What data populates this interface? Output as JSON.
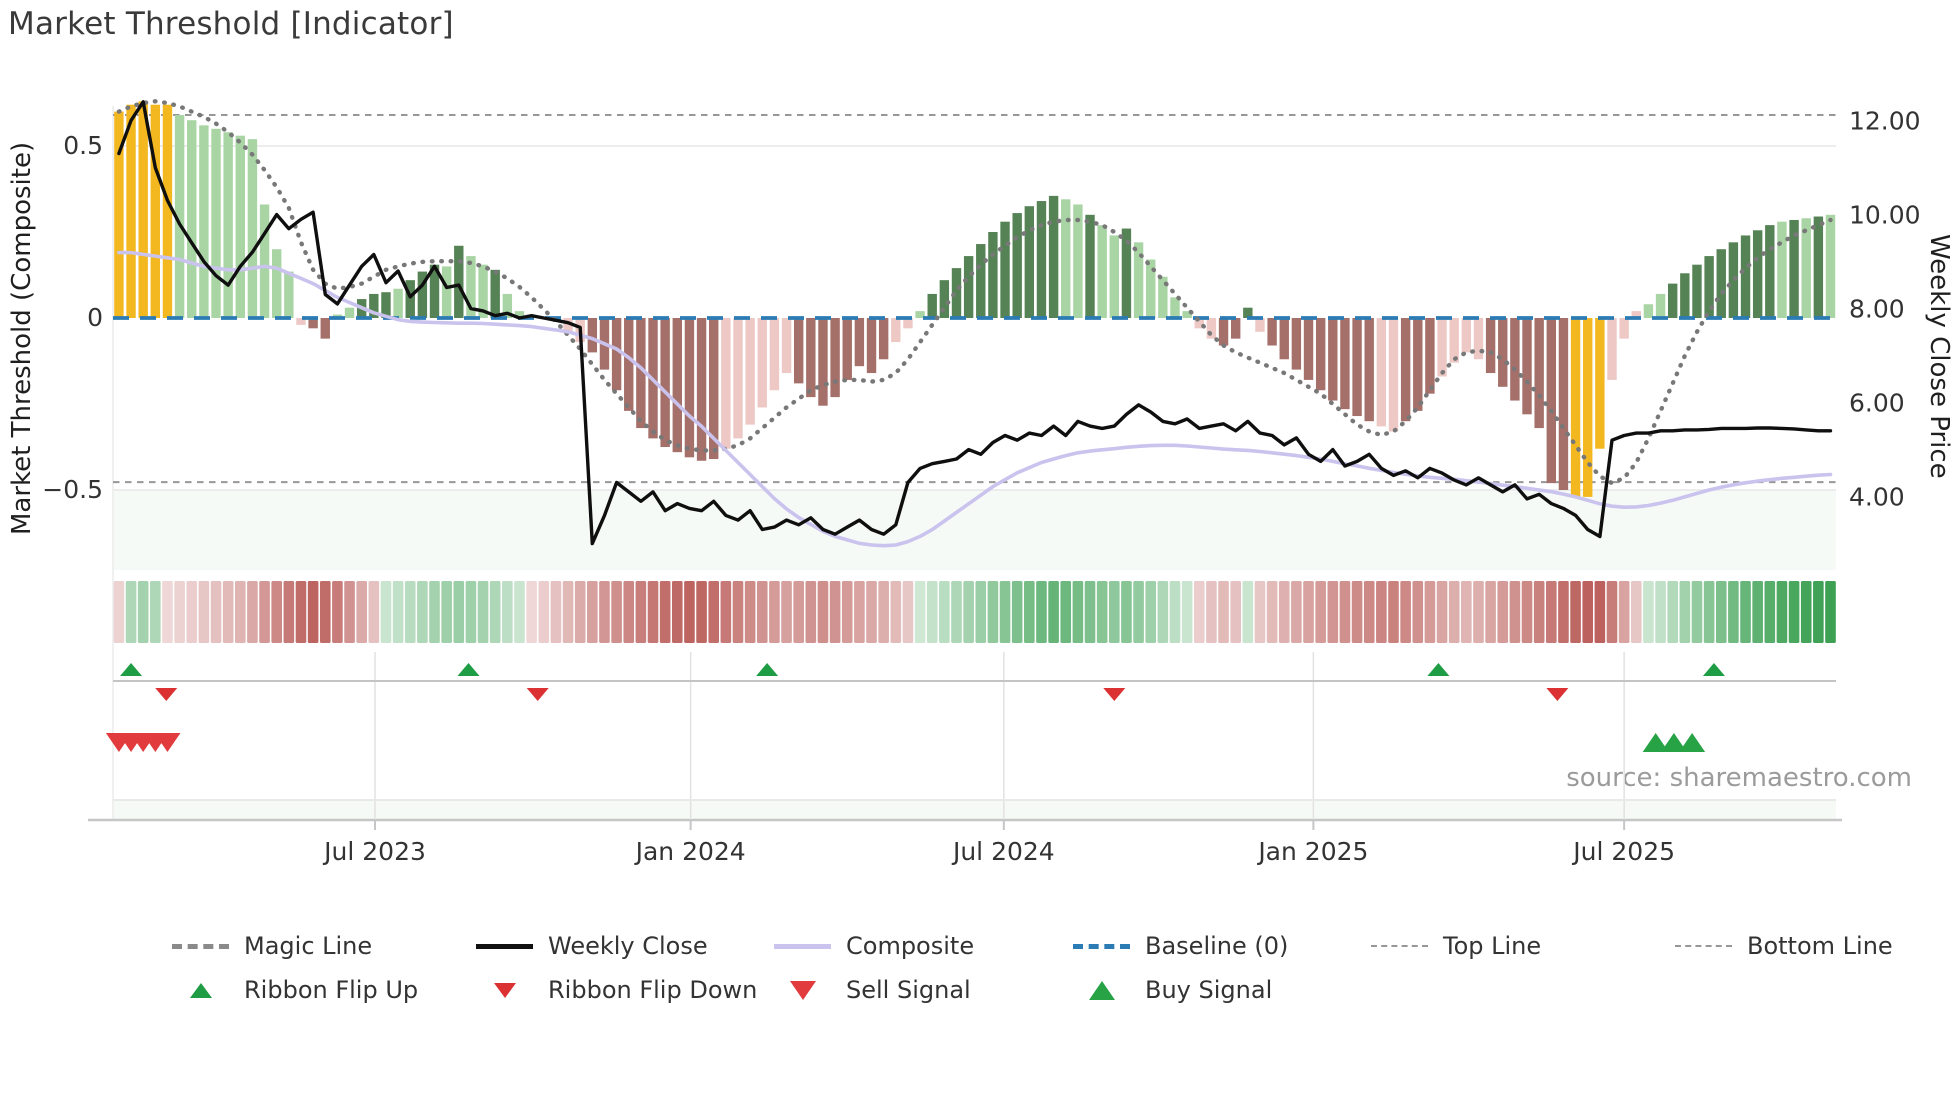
{
  "page": {
    "title": "Market Threshold [Indicator]",
    "source_note": "source: sharemaestro.com"
  },
  "axes": {
    "left_label": "Market Threshold (Composite)",
    "right_label": "Weekly Close Price"
  },
  "legend": {
    "magic": "Magic Line",
    "weekly": "Weekly Close",
    "composite": "Composite",
    "baseline": "Baseline (0)",
    "top": "Top Line",
    "bottom": "Bottom Line",
    "flip_up": "Ribbon Flip Up",
    "flip_down": "Ribbon Flip Down",
    "sell": "Sell Signal",
    "buy": "Buy Signal"
  },
  "colors": {
    "bar_yellow": "#f3b71f",
    "bar_light_green": "#a9d4a4",
    "bar_dark_green": "#568356",
    "bar_light_pink": "#edc8c5",
    "bar_dark_red": "#a5706a",
    "baseline_blue": "#2b7bb4",
    "magic_gray": "#787878",
    "composite_lavender": "#c9c3ee",
    "weekly_close_black": "#0f0f0f",
    "ref_dash_gray": "#979797",
    "grid_gray": "#ececec",
    "axis_line_gray": "#c6c6c6",
    "flip_up_green": "#1f9d44",
    "flip_down_red": "#dc3132",
    "buy_green": "#27a245",
    "sell_red": "#e23b3e",
    "ribbon_pos_deep": "#2a9742",
    "ribbon_neg_deep": "#b34d49",
    "tick_text": "#333333",
    "band_mint": "#f6faf6"
  },
  "chart_data": {
    "type": "bar+line combo (weekly indicator histogram with price overlay, ribbon heatmap and signal markers)",
    "title": "Market Threshold [Indicator]",
    "ylabel_left": "Market Threshold (Composite)",
    "ylabel_right": "Weekly Close Price",
    "ylim_left": [
      -0.73,
      0.62
    ],
    "ylim_right": [
      2.44,
      12.31
    ],
    "grid": "horizontal at +0.5 and -0.5 only",
    "legend_position": "bottom, two rows",
    "weeks": 142,
    "x_ticks": [
      {
        "week": 21.1,
        "label": "Jul 2023"
      },
      {
        "week": 47.1,
        "label": "Jan 2024"
      },
      {
        "week": 72.9,
        "label": "Jul 2024"
      },
      {
        "week": 98.4,
        "label": "Jan 2025"
      },
      {
        "week": 124.0,
        "label": "Jul 2025"
      }
    ],
    "left_ticks": [
      {
        "value": 0.5,
        "label": "0.5"
      },
      {
        "value": 0,
        "label": "0"
      },
      {
        "value": -0.5,
        "label": "−0.5"
      }
    ],
    "right_ticks": [
      {
        "price": 12,
        "label": "12.00"
      },
      {
        "price": 10,
        "label": "10.00"
      },
      {
        "price": 8,
        "label": "8.00"
      },
      {
        "price": 6,
        "label": "6.00"
      },
      {
        "price": 4,
        "label": "4.00"
      }
    ],
    "reference_lines": {
      "baseline": 0,
      "top_line": 0.59,
      "bottom_line": -0.477
    },
    "histogram": {
      "name": "Market Threshold histogram",
      "color_codes": "y=yellow g=light-green G=dark-green p=light-pink R=dark-red 0=none",
      "colors": "yyyyyggggggggggpRRggGGGgGGGgGggGggg00ppRRRRRRRRRRRppppppRRRRRRRRppgGGGGGGGGGGGggGggGgggggppRRGpRRRRRRRRRppRRRppppRRRRRRRyyypppggGGGGGGGGGgGgGgG",
      "values": [
        0.6,
        0.62,
        0.63,
        0.62,
        0.62,
        0.59,
        0.575,
        0.56,
        0.55,
        0.54,
        0.53,
        0.52,
        0.33,
        0.2,
        0.135,
        -0.02,
        -0.03,
        -0.06,
        0.01,
        0.03,
        0.055,
        0.07,
        0.075,
        0.085,
        0.11,
        0.135,
        0.155,
        0.15,
        0.21,
        0.18,
        0.155,
        0.14,
        0.07,
        0.02,
        0.005,
        0,
        0,
        -0.04,
        -0.07,
        -0.1,
        -0.15,
        -0.21,
        -0.27,
        -0.32,
        -0.35,
        -0.375,
        -0.39,
        -0.405,
        -0.415,
        -0.41,
        -0.38,
        -0.35,
        -0.31,
        -0.26,
        -0.21,
        -0.16,
        -0.19,
        -0.23,
        -0.255,
        -0.23,
        -0.18,
        -0.14,
        -0.16,
        -0.12,
        -0.07,
        -0.03,
        0.02,
        0.07,
        0.11,
        0.145,
        0.18,
        0.215,
        0.25,
        0.28,
        0.305,
        0.325,
        0.34,
        0.355,
        0.345,
        0.33,
        0.3,
        0.27,
        0.24,
        0.26,
        0.22,
        0.17,
        0.12,
        0.06,
        0.02,
        -0.03,
        -0.06,
        -0.08,
        -0.06,
        0.03,
        -0.04,
        -0.08,
        -0.12,
        -0.15,
        -0.18,
        -0.21,
        -0.24,
        -0.265,
        -0.285,
        -0.3,
        -0.315,
        -0.33,
        -0.3,
        -0.27,
        -0.22,
        -0.17,
        -0.13,
        -0.1,
        -0.12,
        -0.16,
        -0.2,
        -0.24,
        -0.28,
        -0.32,
        -0.48,
        -0.5,
        -0.52,
        -0.52,
        -0.38,
        -0.18,
        -0.06,
        0.02,
        0.04,
        0.07,
        0.1,
        0.13,
        0.155,
        0.18,
        0.2,
        0.22,
        0.24,
        0.255,
        0.27,
        0.28,
        0.285,
        0.29,
        0.295,
        0.3
      ]
    },
    "series": [
      {
        "name": "Weekly Close",
        "axis": "right",
        "values": [
          11.3,
          12.0,
          12.4,
          11.0,
          10.3,
          9.8,
          9.4,
          9.0,
          8.7,
          8.5,
          8.9,
          9.2,
          9.6,
          10.0,
          9.7,
          9.9,
          10.05,
          8.3,
          8.1,
          8.5,
          8.9,
          9.15,
          8.55,
          8.8,
          8.25,
          8.5,
          8.9,
          8.45,
          8.5,
          8.0,
          7.95,
          7.85,
          7.9,
          7.8,
          7.85,
          7.8,
          7.75,
          7.7,
          7.6,
          3.0,
          3.6,
          4.3,
          4.1,
          3.9,
          4.1,
          3.7,
          3.85,
          3.75,
          3.7,
          3.9,
          3.6,
          3.5,
          3.7,
          3.3,
          3.35,
          3.5,
          3.4,
          3.55,
          3.3,
          3.2,
          3.35,
          3.5,
          3.3,
          3.2,
          3.4,
          4.3,
          4.6,
          4.7,
          4.75,
          4.8,
          5.0,
          4.9,
          5.15,
          5.3,
          5.2,
          5.35,
          5.3,
          5.5,
          5.3,
          5.6,
          5.5,
          5.45,
          5.5,
          5.75,
          5.95,
          5.8,
          5.6,
          5.55,
          5.65,
          5.45,
          5.5,
          5.55,
          5.4,
          5.6,
          5.35,
          5.3,
          5.1,
          5.25,
          4.9,
          4.75,
          5.0,
          4.65,
          4.75,
          4.9,
          4.6,
          4.45,
          4.55,
          4.4,
          4.6,
          4.5,
          4.35,
          4.25,
          4.4,
          4.25,
          4.1,
          4.25,
          3.95,
          4.05,
          3.85,
          3.75,
          3.6,
          3.3,
          3.15,
          5.2,
          5.3,
          5.35,
          5.35,
          5.4,
          5.4,
          5.42,
          5.42,
          5.43,
          5.45,
          5.45,
          5.45,
          5.46,
          5.46,
          5.45,
          5.44,
          5.42,
          5.4,
          5.4
        ]
      },
      {
        "name": "Composite",
        "axis": "left",
        "values": [
          0.19,
          0.19,
          0.185,
          0.18,
          0.175,
          0.17,
          0.16,
          0.15,
          0.145,
          0.14,
          0.14,
          0.145,
          0.15,
          0.145,
          0.13,
          0.115,
          0.1,
          0.08,
          0.06,
          0.045,
          0.03,
          0.015,
          0.005,
          -0.005,
          -0.01,
          -0.012,
          -0.013,
          -0.014,
          -0.015,
          -0.015,
          -0.016,
          -0.018,
          -0.02,
          -0.022,
          -0.025,
          -0.03,
          -0.035,
          -0.04,
          -0.05,
          -0.06,
          -0.075,
          -0.09,
          -0.115,
          -0.145,
          -0.18,
          -0.215,
          -0.25,
          -0.285,
          -0.315,
          -0.35,
          -0.385,
          -0.42,
          -0.455,
          -0.49,
          -0.525,
          -0.555,
          -0.58,
          -0.6,
          -0.62,
          -0.635,
          -0.645,
          -0.655,
          -0.66,
          -0.662,
          -0.66,
          -0.65,
          -0.635,
          -0.615,
          -0.59,
          -0.565,
          -0.54,
          -0.515,
          -0.49,
          -0.47,
          -0.45,
          -0.435,
          -0.42,
          -0.41,
          -0.4,
          -0.392,
          -0.387,
          -0.383,
          -0.38,
          -0.376,
          -0.373,
          -0.371,
          -0.37,
          -0.37,
          -0.372,
          -0.375,
          -0.378,
          -0.381,
          -0.383,
          -0.385,
          -0.388,
          -0.392,
          -0.396,
          -0.4,
          -0.405,
          -0.41,
          -0.417,
          -0.424,
          -0.43,
          -0.437,
          -0.443,
          -0.449,
          -0.454,
          -0.459,
          -0.463,
          -0.466,
          -0.469,
          -0.473,
          -0.477,
          -0.481,
          -0.486,
          -0.49,
          -0.495,
          -0.5,
          -0.505,
          -0.512,
          -0.52,
          -0.53,
          -0.54,
          -0.547,
          -0.55,
          -0.549,
          -0.545,
          -0.538,
          -0.53,
          -0.52,
          -0.51,
          -0.5,
          -0.492,
          -0.485,
          -0.479,
          -0.474,
          -0.47,
          -0.466,
          -0.463,
          -0.46,
          -0.457,
          -0.455
        ]
      },
      {
        "name": "Magic Line",
        "axis": "left",
        "values": [
          0.6,
          0.615,
          0.625,
          0.63,
          0.625,
          0.615,
          0.6,
          0.585,
          0.565,
          0.54,
          0.51,
          0.475,
          0.43,
          0.38,
          0.32,
          0.22,
          0.14,
          0.1,
          0.085,
          0.09,
          0.1,
          0.12,
          0.14,
          0.15,
          0.158,
          0.163,
          0.165,
          0.165,
          0.165,
          0.16,
          0.15,
          0.135,
          0.115,
          0.09,
          0.06,
          0.025,
          -0.01,
          -0.05,
          -0.09,
          -0.135,
          -0.18,
          -0.22,
          -0.26,
          -0.3,
          -0.33,
          -0.355,
          -0.37,
          -0.38,
          -0.385,
          -0.385,
          -0.38,
          -0.37,
          -0.35,
          -0.32,
          -0.29,
          -0.26,
          -0.235,
          -0.21,
          -0.195,
          -0.185,
          -0.18,
          -0.18,
          -0.185,
          -0.18,
          -0.16,
          -0.12,
          -0.07,
          -0.02,
          0.03,
          0.08,
          0.12,
          0.155,
          0.185,
          0.21,
          0.235,
          0.255,
          0.27,
          0.28,
          0.285,
          0.285,
          0.28,
          0.27,
          0.25,
          0.225,
          0.19,
          0.15,
          0.11,
          0.07,
          0.03,
          -0.01,
          -0.05,
          -0.08,
          -0.1,
          -0.115,
          -0.13,
          -0.145,
          -0.16,
          -0.18,
          -0.2,
          -0.22,
          -0.25,
          -0.28,
          -0.31,
          -0.33,
          -0.34,
          -0.33,
          -0.3,
          -0.26,
          -0.21,
          -0.16,
          -0.12,
          -0.1,
          -0.095,
          -0.1,
          -0.12,
          -0.15,
          -0.185,
          -0.225,
          -0.27,
          -0.32,
          -0.37,
          -0.42,
          -0.46,
          -0.48,
          -0.465,
          -0.42,
          -0.35,
          -0.27,
          -0.19,
          -0.11,
          -0.04,
          0.02,
          0.07,
          0.11,
          0.145,
          0.175,
          0.2,
          0.22,
          0.24,
          0.255,
          0.27,
          0.285
        ]
      }
    ],
    "ribbon": {
      "name": "trend ribbon heatmap (-1 strong red .. +1 strong green)",
      "values": [
        -0.15,
        0.3,
        0.35,
        0.3,
        -0.12,
        -0.15,
        -0.18,
        -0.22,
        -0.26,
        -0.3,
        -0.34,
        -0.42,
        -0.52,
        -0.62,
        -0.72,
        -0.8,
        -0.85,
        -0.8,
        -0.7,
        -0.55,
        -0.4,
        -0.25,
        0.15,
        0.2,
        0.25,
        0.3,
        0.35,
        0.38,
        0.4,
        0.38,
        0.35,
        0.3,
        0.22,
        0.15,
        -0.12,
        -0.18,
        -0.25,
        -0.32,
        -0.4,
        -0.47,
        -0.53,
        -0.58,
        -0.63,
        -0.68,
        -0.73,
        -0.78,
        -0.82,
        -0.85,
        -0.83,
        -0.78,
        -0.72,
        -0.66,
        -0.6,
        -0.55,
        -0.5,
        -0.47,
        -0.5,
        -0.55,
        -0.58,
        -0.55,
        -0.5,
        -0.45,
        -0.42,
        -0.38,
        -0.3,
        -0.22,
        0.12,
        0.18,
        0.24,
        0.3,
        0.35,
        0.4,
        0.45,
        0.5,
        0.55,
        0.6,
        0.64,
        0.68,
        0.64,
        0.6,
        0.55,
        0.5,
        0.46,
        0.5,
        0.44,
        0.38,
        0.3,
        0.22,
        0.15,
        -0.18,
        -0.25,
        -0.3,
        -0.25,
        0.15,
        -0.22,
        -0.3,
        -0.36,
        -0.41,
        -0.46,
        -0.5,
        -0.54,
        -0.57,
        -0.6,
        -0.62,
        -0.64,
        -0.66,
        -0.62,
        -0.57,
        -0.5,
        -0.44,
        -0.38,
        -0.34,
        -0.38,
        -0.44,
        -0.5,
        -0.56,
        -0.62,
        -0.67,
        -0.72,
        -0.78,
        -0.83,
        -0.87,
        -0.87,
        -0.7,
        -0.45,
        -0.22,
        0.15,
        0.2,
        0.28,
        0.36,
        0.44,
        0.5,
        0.56,
        0.62,
        0.67,
        0.72,
        0.76,
        0.8,
        0.83,
        0.86,
        0.88,
        0.9
      ]
    },
    "markers": {
      "ribbon_flip_up_weeks": [
        1.0,
        28.8,
        53.4,
        108.7,
        131.4
      ],
      "ribbon_flip_down_weeks": [
        3.9,
        34.5,
        82.0,
        118.5
      ],
      "sell_signal_weeks": [
        0,
        1,
        2,
        3,
        4
      ],
      "buy_signal_weeks": [
        126.6,
        128.1,
        129.6
      ]
    }
  }
}
